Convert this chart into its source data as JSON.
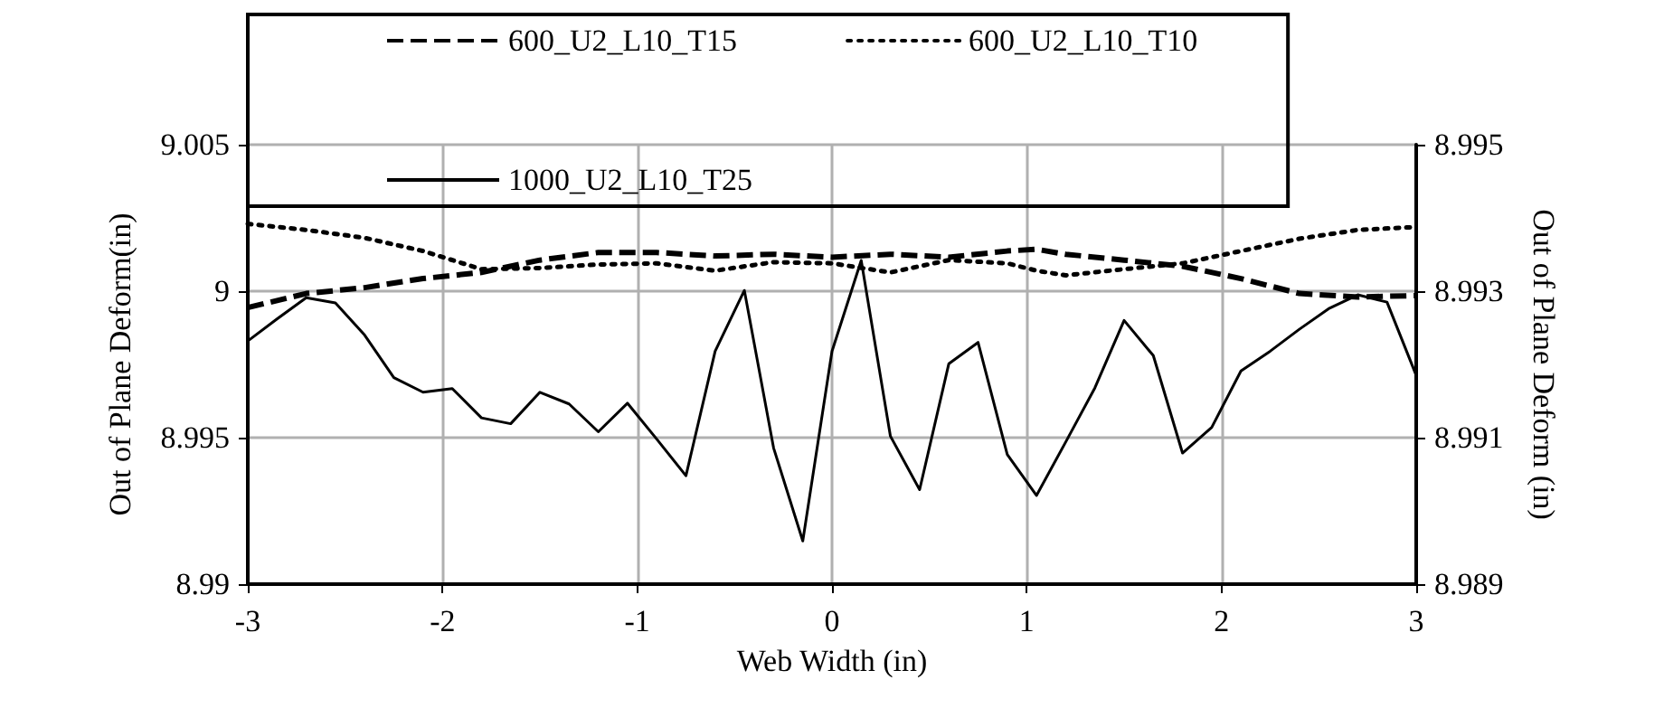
{
  "chart_data": {
    "type": "line",
    "xlabel": "Web Width (in)",
    "ylabel": "Out of Plane Deform(in)",
    "y2label": "Out of Plane Deform (in)",
    "xlim": [
      -3,
      3
    ],
    "xticks": [
      -3,
      -2,
      -1,
      0,
      1,
      2,
      3
    ],
    "ylim": [
      8.99,
      9.005
    ],
    "yticks": [
      8.99,
      8.995,
      9,
      9.005
    ],
    "y2lim": [
      8.989,
      8.995
    ],
    "y2ticks": [
      8.989,
      8.991,
      8.993,
      8.995
    ],
    "grid": true,
    "legend": "top",
    "marker": "none",
    "series": [
      {
        "name": "600_U2_L10_T15",
        "color": "#000000",
        "line_style": "dashed",
        "x": [
          -3,
          -2.7,
          -2.4,
          -2.1,
          -1.8,
          -1.5,
          -1.2,
          -0.9,
          -0.6,
          -0.3,
          0,
          0.3,
          0.6,
          0.9,
          1.05,
          1.2,
          1.5,
          1.8,
          2.1,
          2.4,
          2.7,
          3
        ],
        "values": [
          8.99944,
          8.99992,
          9.00012,
          9.00043,
          9.00064,
          9.00106,
          9.00132,
          9.00132,
          9.0012,
          9.00126,
          9.00116,
          9.00126,
          9.00116,
          9.00137,
          9.00143,
          9.00126,
          9.00106,
          9.00085,
          9.00043,
          8.99992,
          8.9998,
          8.99985
        ]
      },
      {
        "name": "600_U2_L10_T10",
        "color": "#000000",
        "line_style": "dotted",
        "x": [
          -3,
          -2.7,
          -2.4,
          -2.1,
          -1.8,
          -1.5,
          -1.2,
          -0.9,
          -0.6,
          -0.3,
          0,
          0.3,
          0.6,
          0.9,
          1.05,
          1.2,
          1.5,
          1.8,
          2.1,
          2.4,
          2.7,
          3
        ],
        "values": [
          9.0023,
          9.00209,
          9.00182,
          9.00137,
          9.00075,
          9.00079,
          9.00091,
          9.00095,
          9.0007,
          9.00099,
          9.00095,
          9.00064,
          9.00106,
          9.00095,
          9.0007,
          9.00054,
          9.00075,
          9.00095,
          9.00137,
          9.00179,
          9.00209,
          9.00219
        ]
      },
      {
        "name": "1000_U2_L10_T25",
        "color": "#000000",
        "line_style": "solid",
        "axis": "y2",
        "x": [
          -3,
          -2.85,
          -2.7,
          -2.55,
          -2.4,
          -2.25,
          -2.1,
          -1.95,
          -1.8,
          -1.65,
          -1.5,
          -1.35,
          -1.2,
          -1.05,
          -0.9,
          -0.75,
          -0.6,
          -0.45,
          -0.3,
          -0.15,
          0,
          0.15,
          0.3,
          0.45,
          0.6,
          0.75,
          0.9,
          1.05,
          1.2,
          1.35,
          1.5,
          1.65,
          1.8,
          1.95,
          2.1,
          2.25,
          2.4,
          2.55,
          2.7,
          2.85,
          3
        ],
        "values": [
          8.99232,
          8.99262,
          8.99291,
          8.99284,
          8.9924,
          8.99182,
          8.99162,
          8.99167,
          8.99127,
          8.99119,
          8.99162,
          8.99146,
          8.99108,
          8.99147,
          8.99098,
          8.99048,
          8.99218,
          8.99301,
          8.99086,
          8.98959,
          8.99218,
          8.99342,
          8.99102,
          8.99029,
          8.99201,
          8.9923,
          8.99077,
          8.99021,
          8.99094,
          8.99168,
          8.9926,
          8.99212,
          8.99079,
          8.99114,
          8.99191,
          8.99218,
          8.99248,
          8.99276,
          8.99295,
          8.99285,
          8.99185
        ]
      }
    ]
  }
}
